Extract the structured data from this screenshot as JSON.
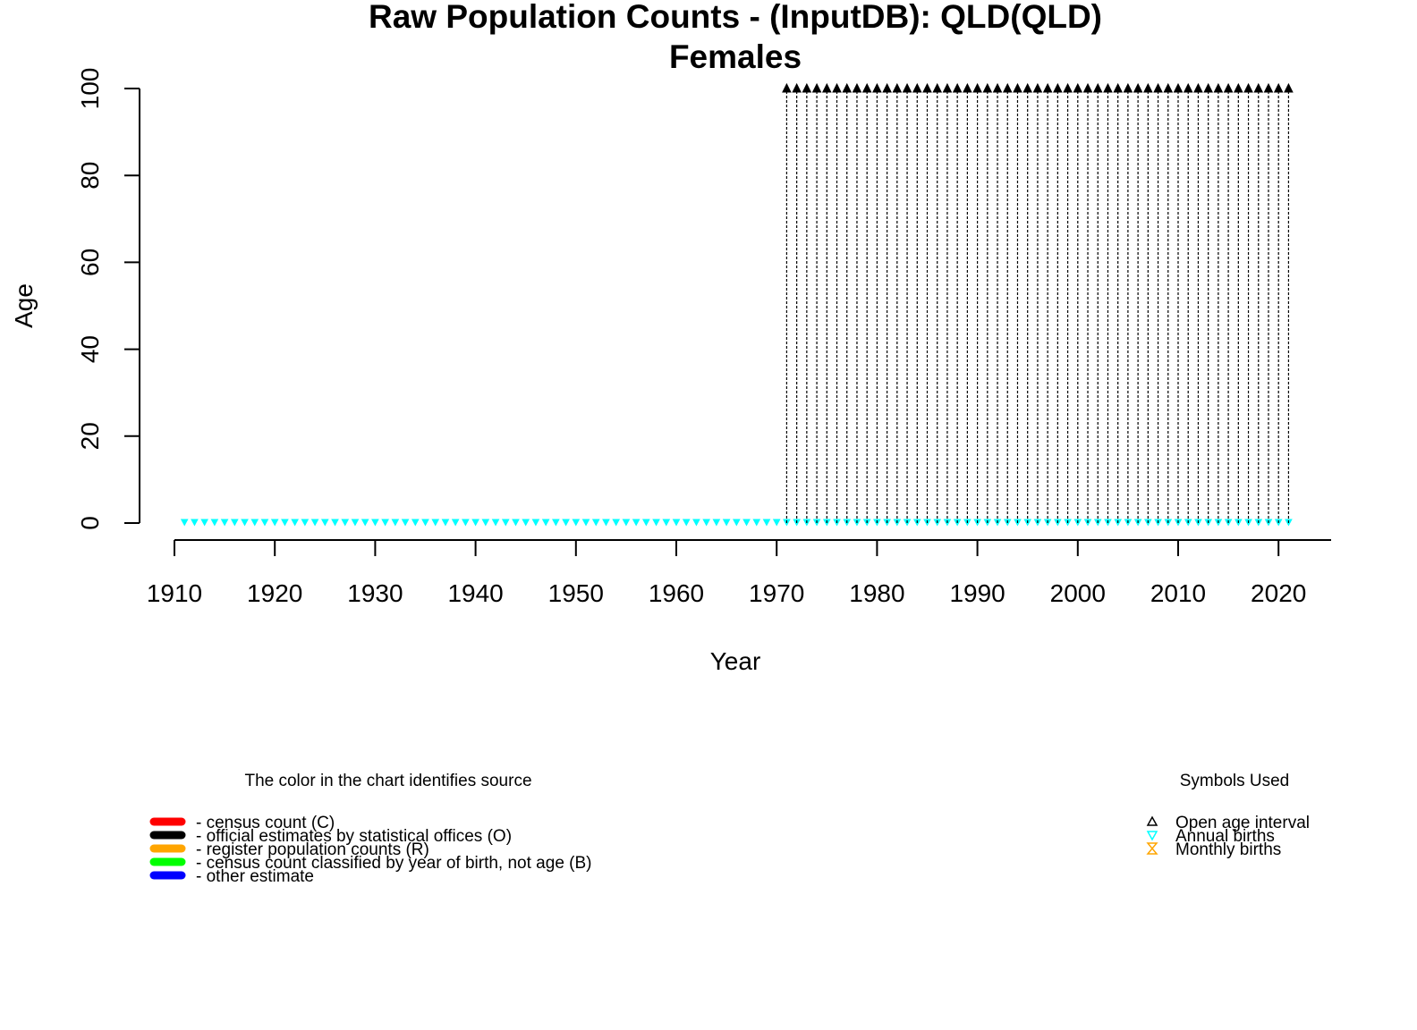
{
  "chart_data": {
    "type": "scatter",
    "title": "Raw Population Counts - (InputDB): QLD(QLD)",
    "subtitle": "Females",
    "xlabel": "Year",
    "ylabel": "Age",
    "xlim": [
      1910,
      2021
    ],
    "ylim": [
      0,
      100
    ],
    "x_ticks": [
      1910,
      1920,
      1930,
      1940,
      1950,
      1960,
      1970,
      1980,
      1990,
      2000,
      2010,
      2020
    ],
    "y_ticks": [
      0,
      20,
      40,
      60,
      80,
      100
    ],
    "grid": false,
    "series": [
      {
        "name": "Annual births",
        "marker": "down-triangle",
        "color": "#00ffff",
        "x_start": 1911,
        "x_end": 2021,
        "y": 0
      },
      {
        "name": "official estimates by statistical offices (O)",
        "marker": "dashed-column",
        "color": "#000000",
        "x_start": 1971,
        "x_end": 2021,
        "y_from": 0,
        "y_to": 100
      },
      {
        "name": "Open age interval",
        "marker": "up-triangle",
        "color": "#000000",
        "x_start": 1971,
        "x_end": 2021,
        "y": 100
      }
    ],
    "legend_source": {
      "title": "The color in the chart identifies source",
      "items": [
        {
          "label": "- census count (C)",
          "color": "#ff0000"
        },
        {
          "label": "- official estimates by statistical offices (O)",
          "color": "#000000"
        },
        {
          "label": "- register population counts (R)",
          "color": "#ffa500"
        },
        {
          "label": "- census count classified by year of birth, not age (B)",
          "color": "#00ff00"
        },
        {
          "label": "- other estimate",
          "color": "#0000ff"
        }
      ]
    },
    "legend_symbols": {
      "title": "Symbols Used",
      "items": [
        {
          "label": "Open age interval",
          "symbol": "up-triangle",
          "color": "#000000"
        },
        {
          "label": "Annual births",
          "symbol": "down-triangle",
          "color": "#00ffff"
        },
        {
          "label": "Monthly births",
          "symbol": "hourglass",
          "color": "#ffa500"
        }
      ]
    }
  }
}
